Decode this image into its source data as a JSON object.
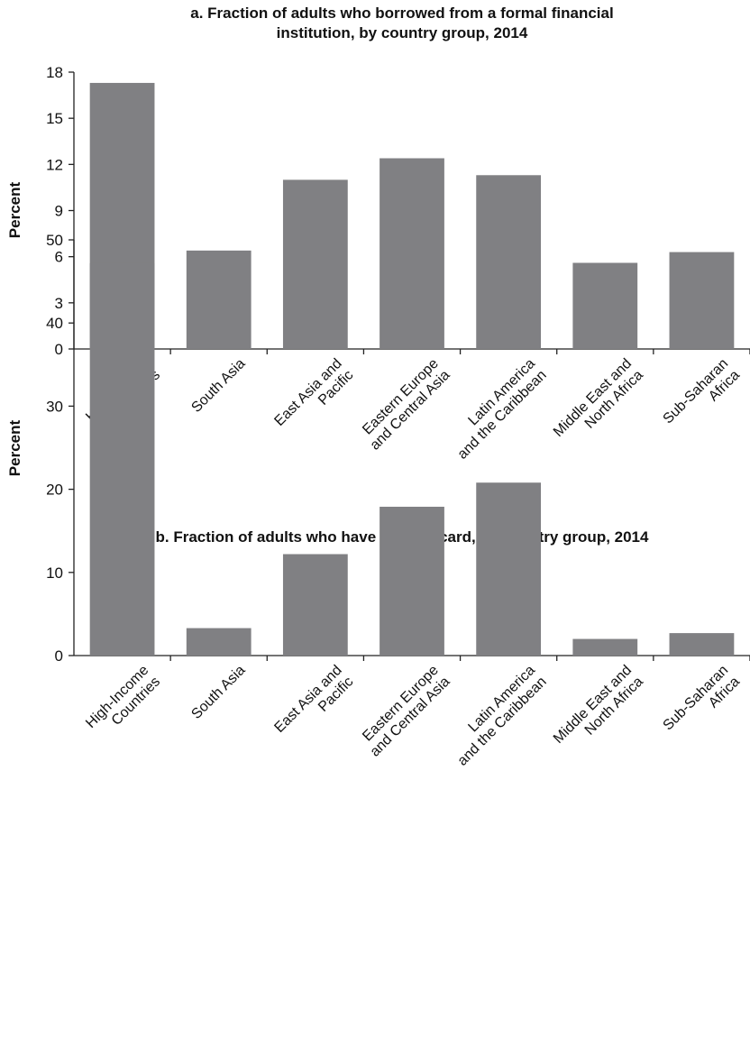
{
  "chart_data": [
    {
      "id": "a",
      "type": "bar",
      "title_lines": [
        "a. Fraction of adults who borrowed from a formal financial",
        "institution, by country group, 2014"
      ],
      "ylabel": "Percent",
      "xlabel": "",
      "ylim": [
        0,
        18
      ],
      "yticks": [
        0,
        3,
        6,
        9,
        12,
        15,
        18
      ],
      "categories": [
        [
          "High-Income",
          "Countries"
        ],
        [
          "South Asia"
        ],
        [
          "East Asia and",
          "Pacific"
        ],
        [
          "Eastern Europe",
          "and Central Asia"
        ],
        [
          "Latin America",
          "and the Caribbean"
        ],
        [
          "Middle East and",
          "North Africa"
        ],
        [
          "Sub-Saharan",
          "Africa"
        ]
      ],
      "values": [
        17.3,
        6.4,
        11.0,
        12.4,
        11.3,
        5.6,
        6.3
      ],
      "bar_color": "#808083",
      "grid": false,
      "legend": "none"
    },
    {
      "id": "b",
      "type": "bar",
      "title_lines": [
        "b. Fraction of adults who have a credit card, by country group, 2014"
      ],
      "ylabel": "Percent",
      "xlabel": "",
      "ylim": [
        0,
        50
      ],
      "yticks": [
        0,
        10,
        20,
        30,
        40,
        50
      ],
      "categories": [
        [
          "High-Income",
          "Countries"
        ],
        [
          "South Asia"
        ],
        [
          "East Asia and",
          "Pacific"
        ],
        [
          "Eastern Europe",
          "and Central Asia"
        ],
        [
          "Latin America",
          "and the Caribbean"
        ],
        [
          "Middle East and",
          "North Africa"
        ],
        [
          "Sub-Saharan",
          "Africa"
        ]
      ],
      "values": [
        47.2,
        3.3,
        12.2,
        17.9,
        20.8,
        2.0,
        2.7
      ],
      "bar_color": "#808083",
      "grid": false,
      "legend": "none"
    }
  ]
}
